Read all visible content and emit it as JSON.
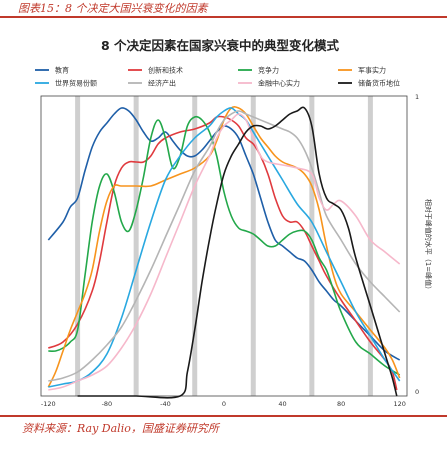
{
  "caption": "图表15：8 个决定大国兴衰变化的因素",
  "source": "资料来源：Ray Dalio，国盛证券研究所",
  "colors": {
    "accent": "#c0392b"
  },
  "chart_data": {
    "type": "line",
    "title": "8 个决定因素在国家兴衰中的典型变化模式",
    "xlabel": "",
    "ylabel": "相对于峰值的水平（1=峰值）",
    "xlim": [
      -125,
      125
    ],
    "ylim": [
      0,
      1
    ],
    "xticks": [
      "-120",
      "-80",
      "-40",
      "0",
      "40",
      "80",
      "120"
    ],
    "y_top_label": "1",
    "y_bottom_label": "0",
    "grid": "vertical bands at -100, -60, -20, 20, 60, 100",
    "legend_position": "top",
    "series": [
      {
        "name": "教育",
        "color": "#1f5fa8",
        "points": [
          [
            -120,
            0.52
          ],
          [
            -110,
            0.58
          ],
          [
            -105,
            0.63
          ],
          [
            -100,
            0.66
          ],
          [
            -95,
            0.75
          ],
          [
            -90,
            0.83
          ],
          [
            -85,
            0.88
          ],
          [
            -80,
            0.91
          ],
          [
            -75,
            0.94
          ],
          [
            -70,
            0.96
          ],
          [
            -65,
            0.95
          ],
          [
            -60,
            0.92
          ],
          [
            -55,
            0.88
          ],
          [
            -50,
            0.85
          ],
          [
            -45,
            0.86
          ],
          [
            -40,
            0.88
          ],
          [
            -35,
            0.85
          ],
          [
            -30,
            0.82
          ],
          [
            -25,
            0.8
          ],
          [
            -20,
            0.8
          ],
          [
            -15,
            0.82
          ],
          [
            -10,
            0.85
          ],
          [
            -5,
            0.88
          ],
          [
            0,
            0.9
          ],
          [
            5,
            0.89
          ],
          [
            10,
            0.86
          ],
          [
            15,
            0.8
          ],
          [
            20,
            0.74
          ],
          [
            25,
            0.66
          ],
          [
            30,
            0.58
          ],
          [
            35,
            0.52
          ],
          [
            40,
            0.5
          ],
          [
            45,
            0.48
          ],
          [
            50,
            0.46
          ],
          [
            55,
            0.45
          ],
          [
            60,
            0.42
          ],
          [
            65,
            0.38
          ],
          [
            70,
            0.35
          ],
          [
            75,
            0.32
          ],
          [
            80,
            0.3
          ],
          [
            90,
            0.25
          ],
          [
            100,
            0.2
          ],
          [
            110,
            0.15
          ],
          [
            120,
            0.12
          ]
        ]
      },
      {
        "name": "创新和技术",
        "color": "#e03a3e",
        "points": [
          [
            -120,
            0.16
          ],
          [
            -110,
            0.18
          ],
          [
            -100,
            0.24
          ],
          [
            -90,
            0.35
          ],
          [
            -85,
            0.45
          ],
          [
            -80,
            0.58
          ],
          [
            -75,
            0.7
          ],
          [
            -70,
            0.76
          ],
          [
            -65,
            0.78
          ],
          [
            -60,
            0.78
          ],
          [
            -55,
            0.78
          ],
          [
            -50,
            0.8
          ],
          [
            -45,
            0.84
          ],
          [
            -40,
            0.86
          ],
          [
            -30,
            0.88
          ],
          [
            -20,
            0.89
          ],
          [
            -10,
            0.91
          ],
          [
            -5,
            0.93
          ],
          [
            0,
            0.93
          ],
          [
            5,
            0.92
          ],
          [
            10,
            0.9
          ],
          [
            15,
            0.86
          ],
          [
            20,
            0.84
          ],
          [
            25,
            0.8
          ],
          [
            30,
            0.74
          ],
          [
            35,
            0.66
          ],
          [
            40,
            0.6
          ],
          [
            45,
            0.58
          ],
          [
            50,
            0.58
          ],
          [
            55,
            0.55
          ],
          [
            60,
            0.5
          ],
          [
            65,
            0.45
          ],
          [
            70,
            0.4
          ],
          [
            80,
            0.32
          ],
          [
            90,
            0.25
          ],
          [
            100,
            0.18
          ],
          [
            110,
            0.12
          ],
          [
            115,
            0.08
          ],
          [
            118,
            0.02
          ]
        ]
      },
      {
        "name": "竞争力",
        "color": "#23a84a",
        "points": [
          [
            -120,
            0.15
          ],
          [
            -115,
            0.15
          ],
          [
            -110,
            0.16
          ],
          [
            -105,
            0.18
          ],
          [
            -100,
            0.22
          ],
          [
            -95,
            0.4
          ],
          [
            -90,
            0.58
          ],
          [
            -85,
            0.7
          ],
          [
            -80,
            0.74
          ],
          [
            -75,
            0.68
          ],
          [
            -70,
            0.58
          ],
          [
            -65,
            0.55
          ],
          [
            -60,
            0.62
          ],
          [
            -55,
            0.73
          ],
          [
            -50,
            0.86
          ],
          [
            -45,
            0.92
          ],
          [
            -40,
            0.86
          ],
          [
            -35,
            0.76
          ],
          [
            -30,
            0.8
          ],
          [
            -25,
            0.9
          ],
          [
            -20,
            0.93
          ],
          [
            -15,
            0.92
          ],
          [
            -10,
            0.88
          ],
          [
            -5,
            0.8
          ],
          [
            0,
            0.68
          ],
          [
            5,
            0.6
          ],
          [
            10,
            0.56
          ],
          [
            15,
            0.55
          ],
          [
            20,
            0.54
          ],
          [
            25,
            0.52
          ],
          [
            30,
            0.5
          ],
          [
            35,
            0.5
          ],
          [
            40,
            0.52
          ],
          [
            45,
            0.54
          ],
          [
            50,
            0.55
          ],
          [
            55,
            0.55
          ],
          [
            60,
            0.52
          ],
          [
            65,
            0.46
          ],
          [
            70,
            0.42
          ],
          [
            75,
            0.35
          ],
          [
            80,
            0.28
          ],
          [
            90,
            0.18
          ],
          [
            100,
            0.14
          ],
          [
            110,
            0.1
          ],
          [
            120,
            0.07
          ]
        ]
      },
      {
        "name": "军事实力",
        "color": "#f7941d",
        "points": [
          [
            -120,
            0.03
          ],
          [
            -115,
            0.08
          ],
          [
            -110,
            0.15
          ],
          [
            -105,
            0.22
          ],
          [
            -100,
            0.28
          ],
          [
            -95,
            0.34
          ],
          [
            -90,
            0.42
          ],
          [
            -85,
            0.55
          ],
          [
            -80,
            0.65
          ],
          [
            -75,
            0.7
          ],
          [
            -70,
            0.7
          ],
          [
            -60,
            0.7
          ],
          [
            -50,
            0.7
          ],
          [
            -40,
            0.72
          ],
          [
            -30,
            0.74
          ],
          [
            -20,
            0.76
          ],
          [
            -10,
            0.8
          ],
          [
            -5,
            0.85
          ],
          [
            0,
            0.92
          ],
          [
            5,
            0.96
          ],
          [
            10,
            0.96
          ],
          [
            15,
            0.94
          ],
          [
            20,
            0.9
          ],
          [
            25,
            0.86
          ],
          [
            30,
            0.83
          ],
          [
            35,
            0.8
          ],
          [
            40,
            0.78
          ],
          [
            45,
            0.77
          ],
          [
            50,
            0.76
          ],
          [
            55,
            0.74
          ],
          [
            60,
            0.7
          ],
          [
            65,
            0.62
          ],
          [
            70,
            0.5
          ],
          [
            75,
            0.4
          ],
          [
            80,
            0.34
          ],
          [
            90,
            0.28
          ],
          [
            100,
            0.22
          ],
          [
            110,
            0.16
          ],
          [
            115,
            0.12
          ],
          [
            120,
            0.06
          ]
        ]
      },
      {
        "name": "世界贸易份额",
        "color": "#29a8e0",
        "points": [
          [
            -120,
            0.03
          ],
          [
            -110,
            0.04
          ],
          [
            -100,
            0.05
          ],
          [
            -90,
            0.08
          ],
          [
            -80,
            0.14
          ],
          [
            -70,
            0.26
          ],
          [
            -60,
            0.42
          ],
          [
            -50,
            0.58
          ],
          [
            -40,
            0.72
          ],
          [
            -30,
            0.8
          ],
          [
            -20,
            0.86
          ],
          [
            -10,
            0.9
          ],
          [
            -5,
            0.93
          ],
          [
            0,
            0.95
          ],
          [
            5,
            0.96
          ],
          [
            10,
            0.94
          ],
          [
            15,
            0.92
          ],
          [
            20,
            0.88
          ],
          [
            25,
            0.84
          ],
          [
            30,
            0.8
          ],
          [
            40,
            0.72
          ],
          [
            50,
            0.64
          ],
          [
            60,
            0.58
          ],
          [
            70,
            0.48
          ],
          [
            80,
            0.38
          ],
          [
            90,
            0.28
          ],
          [
            100,
            0.2
          ],
          [
            110,
            0.12
          ],
          [
            120,
            0.05
          ]
        ]
      },
      {
        "name": "经济产出",
        "color": "#b5b5b5",
        "points": [
          [
            -120,
            0.05
          ],
          [
            -110,
            0.06
          ],
          [
            -100,
            0.08
          ],
          [
            -90,
            0.12
          ],
          [
            -80,
            0.17
          ],
          [
            -70,
            0.23
          ],
          [
            -60,
            0.32
          ],
          [
            -50,
            0.42
          ],
          [
            -40,
            0.53
          ],
          [
            -30,
            0.64
          ],
          [
            -20,
            0.75
          ],
          [
            -10,
            0.83
          ],
          [
            -5,
            0.88
          ],
          [
            0,
            0.92
          ],
          [
            5,
            0.94
          ],
          [
            10,
            0.95
          ],
          [
            15,
            0.94
          ],
          [
            20,
            0.93
          ],
          [
            30,
            0.91
          ],
          [
            40,
            0.89
          ],
          [
            45,
            0.88
          ],
          [
            50,
            0.86
          ],
          [
            55,
            0.82
          ],
          [
            60,
            0.76
          ],
          [
            65,
            0.68
          ],
          [
            70,
            0.6
          ],
          [
            80,
            0.52
          ],
          [
            90,
            0.44
          ],
          [
            100,
            0.38
          ],
          [
            110,
            0.33
          ],
          [
            120,
            0.28
          ]
        ]
      },
      {
        "name": "金融中心实力",
        "color": "#f6b8cb",
        "points": [
          [
            -120,
            0.02
          ],
          [
            -110,
            0.03
          ],
          [
            -100,
            0.05
          ],
          [
            -90,
            0.07
          ],
          [
            -80,
            0.1
          ],
          [
            -70,
            0.16
          ],
          [
            -60,
            0.24
          ],
          [
            -50,
            0.34
          ],
          [
            -40,
            0.46
          ],
          [
            -30,
            0.58
          ],
          [
            -20,
            0.7
          ],
          [
            -10,
            0.8
          ],
          [
            -5,
            0.86
          ],
          [
            0,
            0.9
          ],
          [
            5,
            0.92
          ],
          [
            10,
            0.94
          ],
          [
            15,
            0.92
          ],
          [
            20,
            0.86
          ],
          [
            25,
            0.8
          ],
          [
            30,
            0.78
          ],
          [
            40,
            0.77
          ],
          [
            50,
            0.76
          ],
          [
            60,
            0.74
          ],
          [
            65,
            0.66
          ],
          [
            70,
            0.62
          ],
          [
            75,
            0.64
          ],
          [
            80,
            0.65
          ],
          [
            90,
            0.6
          ],
          [
            100,
            0.52
          ],
          [
            110,
            0.48
          ],
          [
            120,
            0.44
          ]
        ]
      },
      {
        "name": "储备货币地位",
        "color": "#1a1a1a",
        "points": [
          [
            -100,
            0.0
          ],
          [
            -80,
            0.0
          ],
          [
            -60,
            0.0
          ],
          [
            -30,
            0.0
          ],
          [
            -25,
            0.08
          ],
          [
            -20,
            0.22
          ],
          [
            -15,
            0.38
          ],
          [
            -10,
            0.52
          ],
          [
            -5,
            0.64
          ],
          [
            0,
            0.74
          ],
          [
            5,
            0.8
          ],
          [
            10,
            0.84
          ],
          [
            15,
            0.88
          ],
          [
            20,
            0.9
          ],
          [
            25,
            0.9
          ],
          [
            30,
            0.89
          ],
          [
            35,
            0.9
          ],
          [
            40,
            0.92
          ],
          [
            45,
            0.94
          ],
          [
            50,
            0.95
          ],
          [
            55,
            0.96
          ],
          [
            60,
            0.9
          ],
          [
            65,
            0.74
          ],
          [
            70,
            0.66
          ],
          [
            75,
            0.64
          ],
          [
            80,
            0.62
          ],
          [
            85,
            0.56
          ],
          [
            90,
            0.46
          ],
          [
            100,
            0.3
          ],
          [
            110,
            0.14
          ],
          [
            115,
            0.06
          ],
          [
            118,
            0.0
          ]
        ]
      }
    ]
  }
}
